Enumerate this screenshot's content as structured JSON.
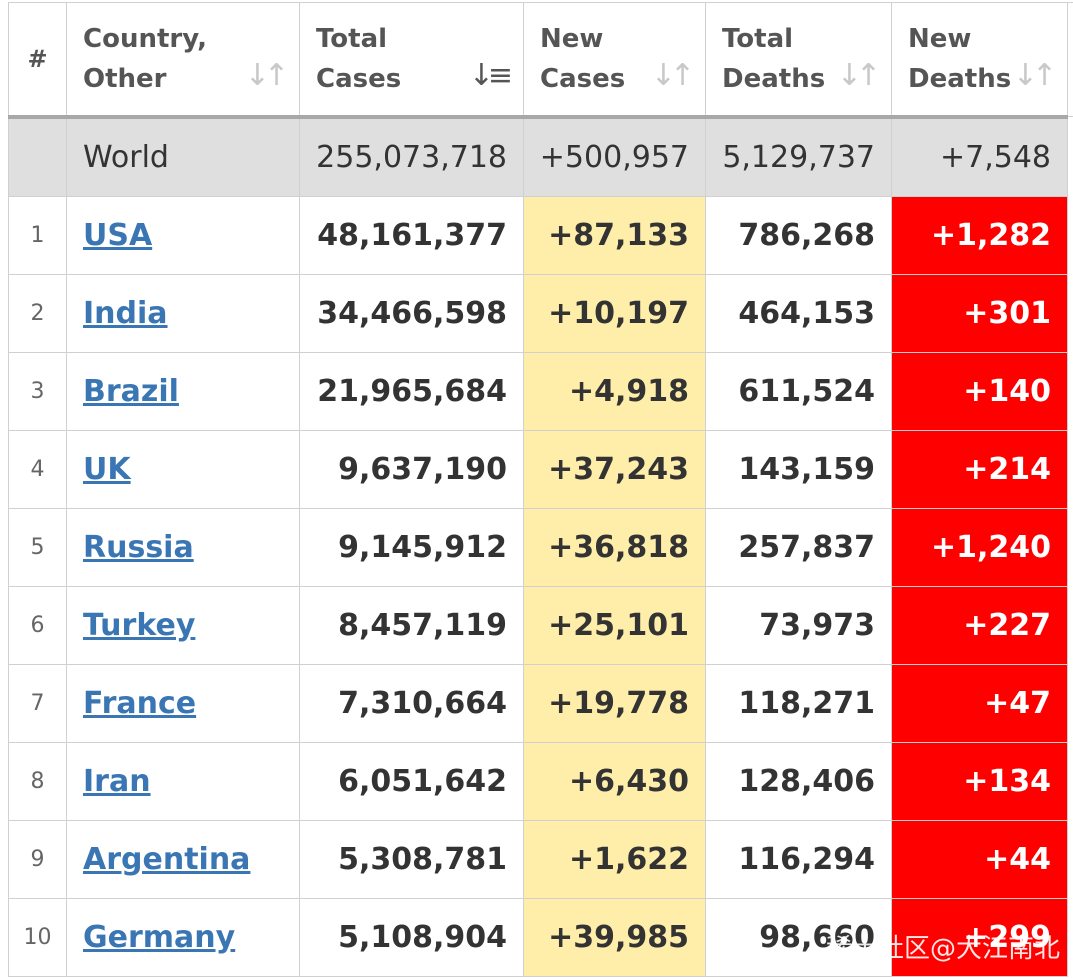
{
  "header": {
    "rank": "#",
    "country_line1": "Country,",
    "country_line2": "Other",
    "total_cases_line1": "Total",
    "total_cases_line2": "Cases",
    "new_cases_line1": "New",
    "new_cases_line2": "Cases",
    "total_deaths_line1": "Total",
    "total_deaths_line2": "Deaths",
    "new_deaths_line1": "New",
    "new_deaths_line2": "Deaths"
  },
  "world": {
    "name": "World",
    "total_cases": "255,073,718",
    "new_cases": "+500,957",
    "total_deaths": "5,129,737",
    "new_deaths": "+7,548"
  },
  "rows": [
    {
      "rank": "1",
      "country": "USA",
      "total_cases": "48,161,377",
      "new_cases": "+87,133",
      "total_deaths": "786,268",
      "new_deaths": "+1,282"
    },
    {
      "rank": "2",
      "country": "India",
      "total_cases": "34,466,598",
      "new_cases": "+10,197",
      "total_deaths": "464,153",
      "new_deaths": "+301"
    },
    {
      "rank": "3",
      "country": "Brazil",
      "total_cases": "21,965,684",
      "new_cases": "+4,918",
      "total_deaths": "611,524",
      "new_deaths": "+140"
    },
    {
      "rank": "4",
      "country": "UK",
      "total_cases": "9,637,190",
      "new_cases": "+37,243",
      "total_deaths": "143,159",
      "new_deaths": "+214"
    },
    {
      "rank": "5",
      "country": "Russia",
      "total_cases": "9,145,912",
      "new_cases": "+36,818",
      "total_deaths": "257,837",
      "new_deaths": "+1,240"
    },
    {
      "rank": "6",
      "country": "Turkey",
      "total_cases": "8,457,119",
      "new_cases": "+25,101",
      "total_deaths": "73,973",
      "new_deaths": "+227"
    },
    {
      "rank": "7",
      "country": "France",
      "total_cases": "7,310,664",
      "new_cases": "+19,778",
      "total_deaths": "118,271",
      "new_deaths": "+47"
    },
    {
      "rank": "8",
      "country": "Iran",
      "total_cases": "6,051,642",
      "new_cases": "+6,430",
      "total_deaths": "128,406",
      "new_deaths": "+134"
    },
    {
      "rank": "9",
      "country": "Argentina",
      "total_cases": "5,308,781",
      "new_cases": "+1,622",
      "total_deaths": "116,294",
      "new_deaths": "+44"
    },
    {
      "rank": "10",
      "country": "Germany",
      "total_cases": "5,108,904",
      "new_cases": "+39,985",
      "total_deaths": "98,660",
      "new_deaths": "+299"
    }
  ],
  "watermark": "稀土社区@大江南北",
  "sort_icons": {
    "inactive": "↓↑",
    "active": "↓≡",
    "active_column": "total_cases"
  },
  "colors": {
    "new_cases_bg": "#ffeeaa",
    "new_deaths_bg": "#ff0000",
    "link": "#3b76b4",
    "world_bg": "#dfdfdf"
  }
}
